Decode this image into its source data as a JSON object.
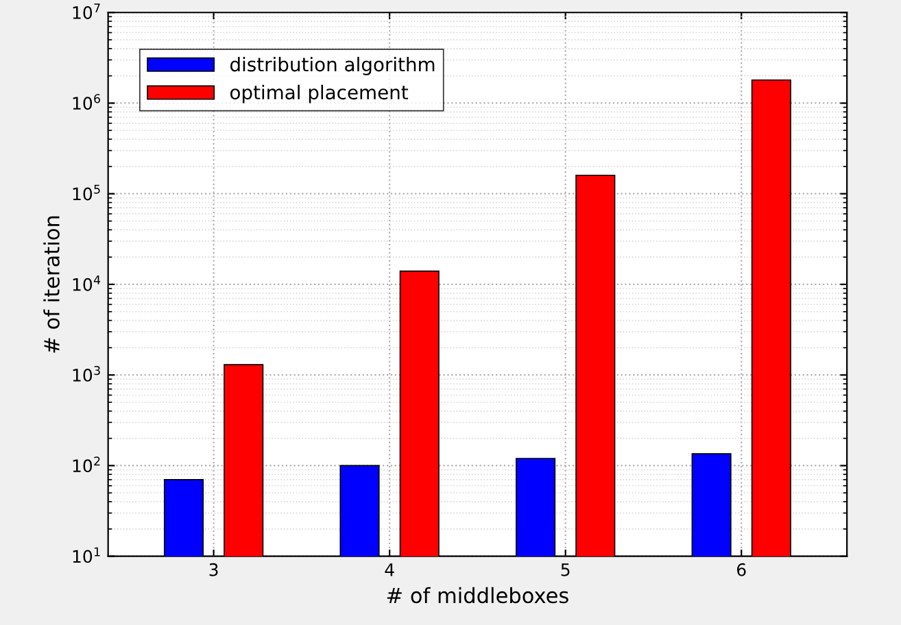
{
  "chart_data": {
    "type": "bar",
    "xlabel": "# of middleboxes",
    "ylabel": "# of iteration",
    "categories": [
      "3",
      "4",
      "5",
      "6"
    ],
    "series": [
      {
        "name": "distribution algorithm",
        "color": "#0000ff",
        "values": [
          70,
          100,
          120,
          135
        ]
      },
      {
        "name": "optimal placement",
        "color": "#ff0000",
        "values": [
          1300,
          14000,
          160000,
          1800000
        ]
      }
    ],
    "log": "y",
    "ylim": [
      10,
      10000000
    ],
    "yticks": [
      {
        "value": 10,
        "label": "10$^{1}$"
      },
      {
        "value": 100,
        "label": "10$^{2}$"
      },
      {
        "value": 1000,
        "label": "10$^{3}$"
      },
      {
        "value": 10000,
        "label": "10$^{4}$"
      },
      {
        "value": 100000,
        "label": "10$^{5}$"
      },
      {
        "value": 1000000,
        "label": "10$^{6}$"
      },
      {
        "value": 10000000,
        "label": "10$^{7}$"
      }
    ],
    "grid": true,
    "legend": "top left"
  }
}
